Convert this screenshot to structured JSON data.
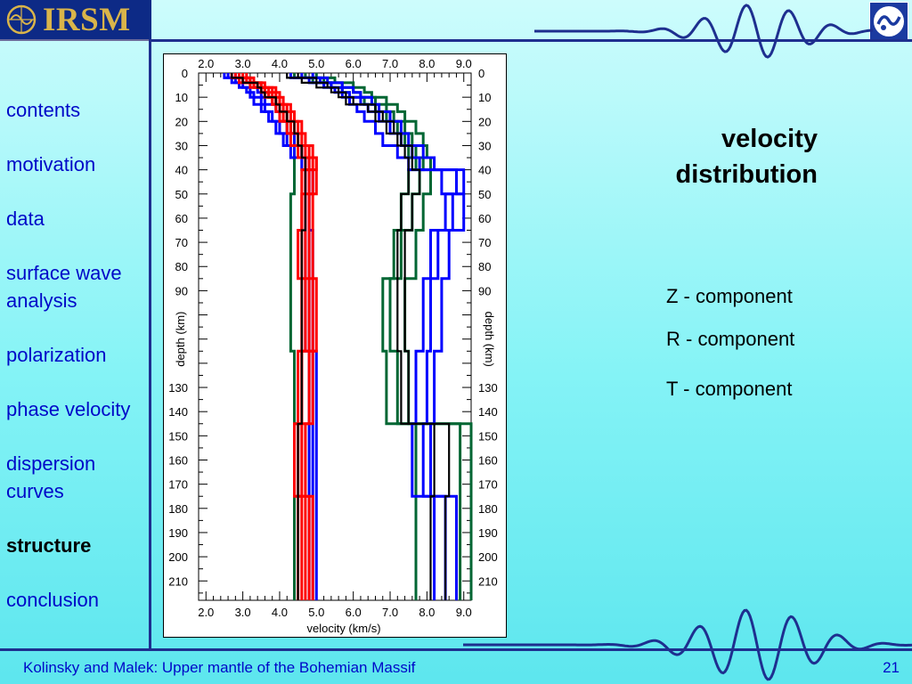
{
  "header": {
    "logo_text": "IRSM"
  },
  "nav": {
    "items": [
      {
        "label": "contents",
        "active": false
      },
      {
        "label": "motivation",
        "active": false
      },
      {
        "label": "data",
        "active": false
      },
      {
        "label": "surface wave analysis",
        "active": false
      },
      {
        "label": "polarization",
        "active": false
      },
      {
        "label": "phase velocity",
        "active": false
      },
      {
        "label": "dispersion curves",
        "active": false
      },
      {
        "label": "structure",
        "active": true
      },
      {
        "label": "conclusion",
        "active": false
      }
    ]
  },
  "panel": {
    "title_line1": "velocity",
    "title_line2": "distribution",
    "legend": [
      "Z - component",
      "R - component",
      "T - component"
    ]
  },
  "footer": {
    "text": "Kolinsky and Malek: Upper mantle of the Bohemian Massif",
    "page_number": "21"
  },
  "colors": {
    "nav_text": "#0008c8",
    "divider": "#1e2f8f",
    "red": "#ff0000",
    "blue": "#0000ff",
    "green": "#006633",
    "black": "#000000"
  },
  "chart_data": {
    "type": "line",
    "xlabel": "velocity (km/s)",
    "ylabel": "depth (km)",
    "xlim": [
      1.8,
      9.2
    ],
    "ylim": [
      0,
      218
    ],
    "xticks": [
      2.0,
      3.0,
      4.0,
      5.0,
      6.0,
      7.0,
      8.0,
      9.0
    ],
    "xtick_labels": [
      "2.0",
      "3.0",
      "4.0",
      "5.0",
      "6.0",
      "7.0",
      "8.0",
      "9.0"
    ],
    "yticks": [
      0,
      10,
      20,
      30,
      40,
      50,
      60,
      70,
      80,
      90,
      130,
      140,
      150,
      160,
      170,
      180,
      190,
      200,
      210
    ],
    "ytick_labels": [
      "0",
      "10",
      "20",
      "30",
      "40",
      "50",
      "60",
      "70",
      "80",
      "90",
      "130",
      "140",
      "150",
      "160",
      "170",
      "180",
      "190",
      "200",
      "210"
    ],
    "depth_breaks": [
      0,
      2,
      4,
      6,
      8,
      10,
      13,
      16,
      20,
      25,
      30,
      35,
      40,
      50,
      65,
      85,
      115,
      145,
      175,
      218
    ],
    "series": [
      {
        "color": "red",
        "profiles": [
          [
            2.7,
            2.9,
            3.3,
            3.5,
            3.6,
            3.8,
            3.9,
            4.0,
            4.2,
            4.3,
            4.5,
            4.8,
            4.7,
            4.6,
            4.6,
            4.7,
            4.5,
            4.4,
            4.5
          ],
          [
            2.9,
            3.1,
            3.4,
            3.7,
            3.8,
            3.9,
            4.0,
            4.2,
            4.3,
            4.5,
            4.7,
            4.9,
            4.8,
            4.7,
            4.7,
            4.8,
            4.6,
            4.5,
            4.6
          ],
          [
            3.1,
            3.3,
            3.6,
            3.8,
            3.9,
            4.0,
            4.2,
            4.3,
            4.5,
            4.6,
            4.8,
            5.0,
            4.9,
            4.8,
            4.8,
            4.9,
            4.8,
            4.6,
            4.8
          ],
          [
            2.8,
            3.0,
            3.2,
            3.6,
            3.7,
            3.8,
            4.1,
            4.1,
            4.4,
            4.5,
            4.6,
            4.7,
            4.6,
            4.6,
            4.5,
            4.6,
            4.6,
            4.5,
            4.7
          ],
          [
            3.0,
            3.2,
            3.5,
            3.9,
            4.0,
            4.1,
            4.3,
            4.4,
            4.6,
            4.7,
            4.9,
            5.0,
            5.0,
            4.9,
            4.9,
            5.0,
            4.9,
            4.7,
            4.9
          ]
        ]
      },
      {
        "color": "blue",
        "profiles": [
          [
            2.6,
            2.8,
            3.0,
            3.1,
            3.2,
            3.3,
            3.5,
            3.7,
            3.9,
            4.1,
            4.3,
            4.6,
            4.7,
            4.7,
            4.7,
            4.7,
            4.8,
            4.8,
            4.8
          ],
          [
            2.8,
            3.0,
            3.3,
            3.4,
            3.5,
            3.6,
            3.9,
            4.0,
            4.2,
            4.4,
            4.6,
            4.8,
            4.9,
            4.8,
            4.9,
            4.9,
            5.0,
            5.0,
            5.0
          ],
          [
            2.5,
            2.7,
            2.9,
            3.2,
            3.3,
            3.5,
            3.6,
            3.8,
            4.0,
            4.2,
            4.4,
            4.7,
            4.8,
            4.8,
            4.8,
            4.8,
            4.9,
            4.9,
            4.9
          ],
          [
            4.3,
            4.8,
            5.2,
            5.5,
            5.7,
            5.9,
            6.1,
            6.3,
            6.6,
            6.8,
            7.2,
            7.5,
            9.0,
            8.5,
            8.1,
            7.9,
            7.7,
            7.6,
            8.2
          ],
          [
            4.6,
            5.1,
            5.4,
            5.7,
            5.9,
            6.2,
            6.4,
            6.7,
            7.0,
            7.3,
            7.6,
            7.8,
            8.4,
            8.7,
            8.3,
            8.1,
            8.0,
            7.9,
            8.5
          ],
          [
            4.9,
            5.3,
            5.7,
            6.0,
            6.2,
            6.5,
            6.7,
            7.0,
            7.3,
            7.5,
            7.9,
            8.2,
            8.8,
            9.0,
            8.6,
            8.4,
            8.2,
            8.1,
            8.8
          ]
        ]
      },
      {
        "color": "green",
        "profiles": [
          [
            2.9,
            3.2,
            3.5,
            3.6,
            3.7,
            3.9,
            4.0,
            4.2,
            4.3,
            4.4,
            4.6,
            4.4,
            4.4,
            4.3,
            4.3,
            4.3,
            4.4,
            4.5,
            4.4
          ],
          [
            4.4,
            4.9,
            5.4,
            5.7,
            5.9,
            6.3,
            6.6,
            6.9,
            7.2,
            7.4,
            7.5,
            7.7,
            7.5,
            7.3,
            7.1,
            6.8,
            6.9,
            7.7,
            7.7
          ],
          [
            4.7,
            5.2,
            5.7,
            6.0,
            6.2,
            6.6,
            6.9,
            7.1,
            7.4,
            7.6,
            7.7,
            7.9,
            7.8,
            7.6,
            7.3,
            7.0,
            7.2,
            8.9,
            8.9
          ],
          [
            5.0,
            5.5,
            6.0,
            6.3,
            6.5,
            6.9,
            7.2,
            7.4,
            7.7,
            7.9,
            8.0,
            8.1,
            8.1,
            7.9,
            7.7,
            7.4,
            7.5,
            9.2,
            9.2
          ]
        ]
      },
      {
        "color": "black",
        "profiles": [
          [
            2.7,
            3.0,
            3.4,
            3.5,
            3.6,
            3.9,
            4.0,
            4.2,
            4.4,
            4.5,
            4.6,
            4.7,
            4.7,
            4.7,
            4.6,
            4.6,
            4.6,
            4.5,
            4.5
          ],
          [
            4.2,
            4.6,
            5.0,
            5.4,
            5.6,
            5.8,
            6.4,
            6.6,
            6.9,
            7.2,
            7.4,
            7.5,
            7.5,
            7.3,
            7.2,
            7.2,
            7.3,
            8.2,
            8.1
          ],
          [
            4.5,
            5.0,
            5.3,
            5.6,
            5.8,
            6.0,
            6.6,
            6.8,
            7.1,
            7.3,
            7.6,
            7.6,
            7.8,
            7.6,
            7.4,
            7.4,
            7.5,
            8.6,
            8.5
          ]
        ]
      }
    ]
  }
}
